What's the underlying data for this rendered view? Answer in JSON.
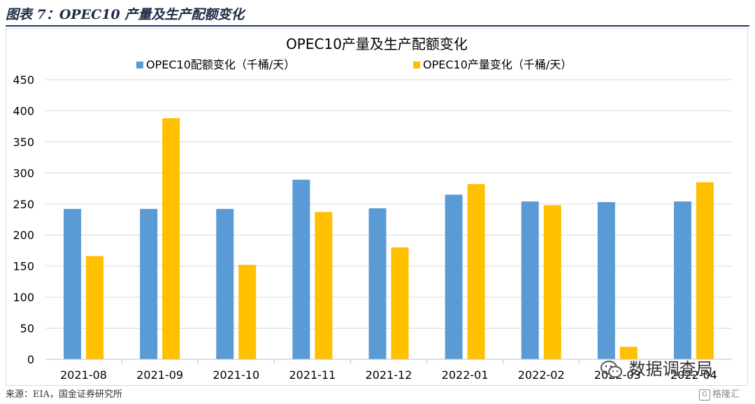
{
  "figure_caption": "图表 7：OPEC10 产量及生产配额变化",
  "source": "来源：EIA，国金证券研究所",
  "watermark": {
    "wechat_text": "数据调查局",
    "brand_text": "格隆汇"
  },
  "colors": {
    "quota": "#5b9bd5",
    "production": "#ffc000",
    "gridline": "#d9d9d9",
    "axis_text": "#000000"
  },
  "chart_data": {
    "type": "bar",
    "title": "OPEC10产量及生产配额变化",
    "categories": [
      "2021-08",
      "2021-09",
      "2021-10",
      "2021-11",
      "2021-12",
      "2022-01",
      "2022-02",
      "2022-03",
      "2022-04"
    ],
    "series": [
      {
        "name": "OPEC10配额变化（千桶/天）",
        "color": "#5b9bd5",
        "values": [
          242,
          242,
          242,
          289,
          243,
          265,
          254,
          253,
          254
        ]
      },
      {
        "name": "OPEC10产量变化（千桶/天）",
        "color": "#ffc000",
        "values": [
          166,
          388,
          152,
          237,
          180,
          282,
          248,
          20,
          285
        ]
      }
    ],
    "ylim": [
      0,
      450
    ],
    "yticks": [
      0,
      50,
      100,
      150,
      200,
      250,
      300,
      350,
      400,
      450
    ],
    "grid": true,
    "legend_position": "top"
  }
}
